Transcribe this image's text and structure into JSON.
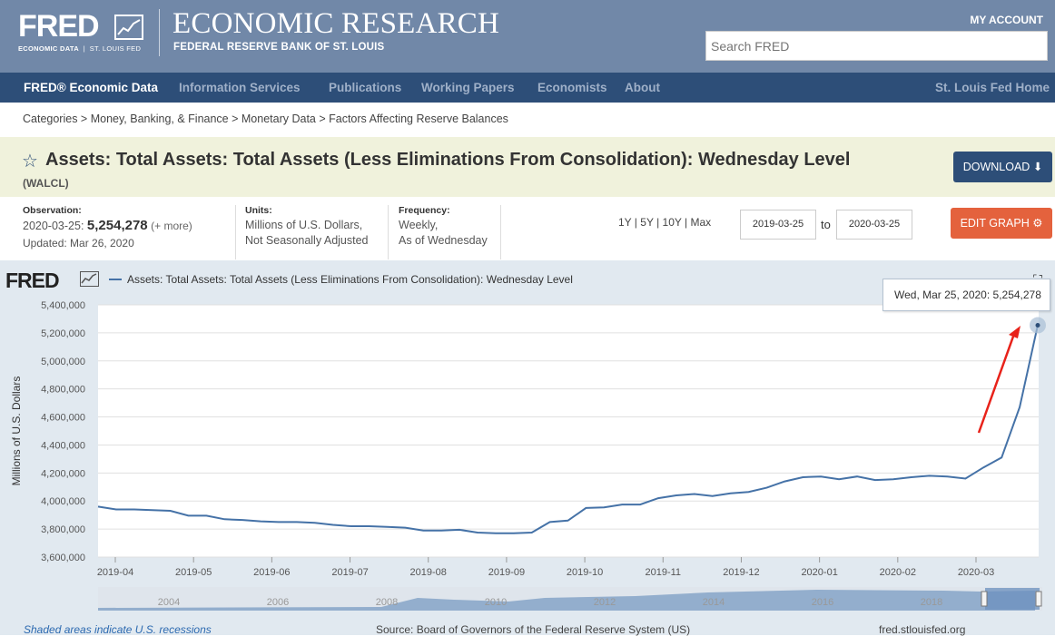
{
  "header": {
    "logo_word": "FRED",
    "logo_sub_left": "ECONOMIC DATA",
    "logo_sub_right": "ST. LOUIS FED",
    "title": "ECONOMIC RESEARCH",
    "subtitle": "FEDERAL RESERVE BANK OF ST. LOUIS",
    "my_account": "MY ACCOUNT",
    "search_placeholder": "Search FRED"
  },
  "nav": {
    "items": [
      {
        "label": "FRED® Economic Data"
      },
      {
        "label": "Information Services"
      },
      {
        "label": "Publications"
      },
      {
        "label": "Working Papers"
      },
      {
        "label": "Economists"
      },
      {
        "label": "About"
      }
    ],
    "right_link": "St. Louis Fed Home"
  },
  "breadcrumb": [
    "Categories",
    "Money, Banking, & Finance",
    "Monetary Data",
    "Factors Affecting Reserve Balances"
  ],
  "series": {
    "title": "Assets: Total Assets: Total Assets (Less Eliminations From Consolidation): Wednesday Level",
    "id": "(WALCL)",
    "download_label": "DOWNLOAD",
    "edit_label": "EDIT GRAPH"
  },
  "meta": {
    "observation_label": "Observation:",
    "obs_date": "2020-03-25:",
    "obs_value": "5,254,278",
    "obs_more": "(+ more)",
    "updated": "Updated: Mar 26, 2020",
    "units_label": "Units:",
    "units_line1": "Millions of U.S. Dollars,",
    "units_line2": "Not Seasonally Adjusted",
    "freq_label": "Frequency:",
    "freq_line1": "Weekly,",
    "freq_line2": "As of Wednesday"
  },
  "range": {
    "buttons": [
      "1Y",
      "5Y",
      "10Y",
      "Max"
    ],
    "start": "2019-03-25",
    "to_label": "to",
    "end": "2020-03-25"
  },
  "chart": {
    "fred_word": "FRED",
    "legend": "Assets: Total Assets: Total Assets (Less Eliminations From Consolidation): Wednesday Level",
    "tooltip_date": "Wed, Mar 25, 2020:",
    "tooltip_value": "5,254,278",
    "recession_note": "Shaded areas indicate U.S. recessions",
    "source": "Source: Board of Governors of the Federal Reserve System (US)",
    "url": "fred.stlouisfed.org"
  },
  "colors": {
    "header": "#7188a8",
    "nav": "#2d4e78",
    "line": "#4572a7",
    "edit_button": "#e4623d",
    "annotation_arrow": "#e8221a"
  },
  "chart_data": {
    "type": "line",
    "title": "Assets: Total Assets: Total Assets (Less Eliminations From Consolidation): Wednesday Level",
    "xlabel": "",
    "ylabel": "Millions of U.S. Dollars",
    "ylim": [
      3600000,
      5400000
    ],
    "yticks": [
      3600000,
      3800000,
      4000000,
      4200000,
      4400000,
      4600000,
      4800000,
      5000000,
      5200000,
      5400000
    ],
    "ytick_labels": [
      "3,600,000",
      "3,800,000",
      "4,000,000",
      "4,200,000",
      "4,400,000",
      "4,600,000",
      "4,800,000",
      "5,000,000",
      "5,200,000",
      "5,400,000"
    ],
    "xticks": [
      "2019-04",
      "2019-05",
      "2019-06",
      "2019-07",
      "2019-08",
      "2019-09",
      "2019-10",
      "2019-11",
      "2019-12",
      "2020-01",
      "2020-02",
      "2020-03"
    ],
    "navigator_years": [
      "2004",
      "2006",
      "2008",
      "2010",
      "2012",
      "2014",
      "2016",
      "2018"
    ],
    "series": [
      {
        "name": "WALCL",
        "values": [
          3960000,
          3940000,
          3940000,
          3935000,
          3930000,
          3895000,
          3895000,
          3870000,
          3865000,
          3855000,
          3850000,
          3850000,
          3845000,
          3830000,
          3820000,
          3820000,
          3815000,
          3810000,
          3790000,
          3790000,
          3795000,
          3775000,
          3770000,
          3770000,
          3775000,
          3850000,
          3860000,
          3950000,
          3955000,
          3975000,
          3975000,
          4020000,
          4040000,
          4050000,
          4035000,
          4055000,
          4065000,
          4095000,
          4140000,
          4170000,
          4175000,
          4155000,
          4175000,
          4150000,
          4155000,
          4170000,
          4180000,
          4175000,
          4160000,
          4240000,
          4310000,
          4670000,
          5254278
        ]
      }
    ]
  }
}
